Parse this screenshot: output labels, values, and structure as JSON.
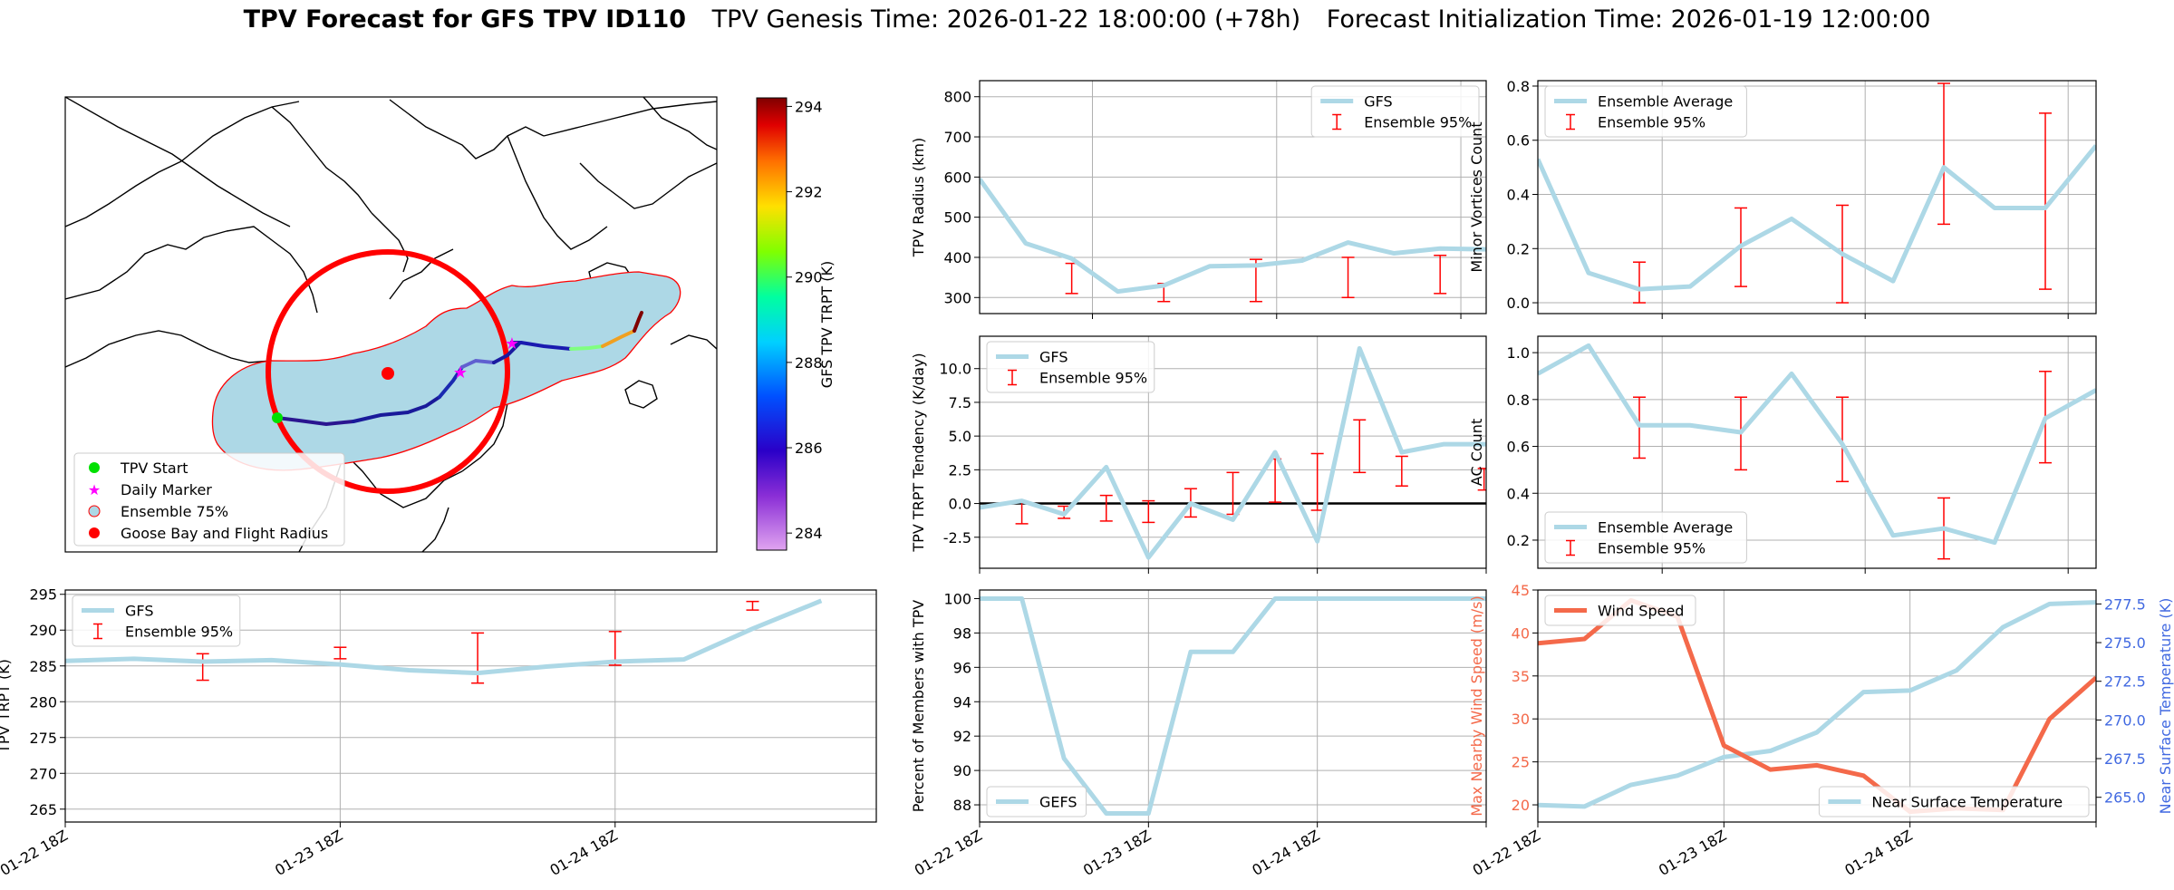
{
  "figure": {
    "title_main": "TPV Forecast for GFS TPV ID110",
    "title_genesis": "TPV Genesis Time: 2026-01-22 18:00:00 (+78h)",
    "title_init": "Forecast Initialization Time: 2026-01-19 12:00:00"
  },
  "colors": {
    "gfs_line": "#add8e6",
    "ensemble_err": "#ff0000",
    "wind": "#f4694a",
    "temp_axis": "#4169e1",
    "zero_line": "#000000"
  },
  "map": {
    "colorbar_label": "GFS TPV TRPT (K)",
    "colorbar_ticks": [
      284,
      286,
      288,
      290,
      292,
      294
    ],
    "colorbar_range": [
      283.6,
      294.2
    ],
    "legend": [
      {
        "label": "TPV Start",
        "marker": "circle",
        "color": "#00e000"
      },
      {
        "label": "Daily Marker",
        "marker": "star",
        "color": "#ff00ff"
      },
      {
        "label": "Ensemble 75%",
        "marker": "circle",
        "color": "#add8e6"
      },
      {
        "label": "Goose Bay and Flight Radius",
        "marker": "circle",
        "color": "#ff0000"
      }
    ]
  },
  "chart_data": [
    {
      "id": "radius",
      "type": "line",
      "ylabel": "TPV Radius (km)",
      "x": [
        0,
        1,
        2,
        3,
        4,
        5,
        6,
        7,
        8,
        9,
        10,
        11
      ],
      "ylim": [
        260,
        840
      ],
      "yticks": [
        300,
        400,
        500,
        600,
        700,
        800
      ],
      "series": [
        {
          "name": "GFS",
          "values": [
            595,
            435,
            397,
            315,
            330,
            378,
            380,
            392,
            437,
            410,
            422,
            420
          ]
        }
      ],
      "errorbars": {
        "name": "Ensemble 95%",
        "x": [
          2,
          4,
          6,
          8,
          10
        ],
        "low": [
          310,
          290,
          290,
          300,
          310
        ],
        "high": [
          385,
          335,
          395,
          400,
          405
        ]
      },
      "legend": "top-right"
    },
    {
      "id": "minor",
      "type": "line",
      "ylabel": "Minor Vortices Count",
      "x": [
        0,
        1,
        2,
        3,
        4,
        5,
        6,
        7,
        8,
        9,
        10,
        11
      ],
      "ylim": [
        -0.04,
        0.82
      ],
      "yticks": [
        0.0,
        0.2,
        0.4,
        0.6,
        0.8
      ],
      "series": [
        {
          "name": "Ensemble Average",
          "values": [
            0.53,
            0.11,
            0.05,
            0.06,
            0.21,
            0.31,
            0.18,
            0.08,
            0.5,
            0.35,
            0.35,
            0.58
          ]
        }
      ],
      "errorbars": {
        "name": "Ensemble 95%",
        "x": [
          2,
          4,
          6,
          8,
          10
        ],
        "low": [
          0.0,
          0.06,
          0.0,
          0.29,
          0.05
        ],
        "high": [
          0.15,
          0.35,
          0.36,
          0.81,
          0.7
        ]
      },
      "legend": "top-left"
    },
    {
      "id": "tendency",
      "type": "line",
      "ylabel": "TPV TRPT Tendency (K/day)",
      "x": [
        0,
        1,
        2,
        3,
        4,
        5,
        6,
        7,
        8,
        9,
        10,
        11,
        12
      ],
      "ylim": [
        -4.8,
        12.4
      ],
      "yticks": [
        -2.5,
        0.0,
        2.5,
        5.0,
        7.5,
        10.0
      ],
      "series": [
        {
          "name": "GFS",
          "values": [
            -0.3,
            0.2,
            -0.8,
            2.7,
            -4.0,
            0.0,
            -1.2,
            3.8,
            -2.8,
            11.5,
            3.8,
            4.4,
            4.4
          ]
        }
      ],
      "hline": 0,
      "errorbars": {
        "name": "Ensemble 95%",
        "x": [
          1,
          2,
          3,
          4,
          5,
          6,
          7,
          8,
          9,
          10,
          11.95
        ],
        "low": [
          -1.5,
          -1.1,
          -1.3,
          -1.4,
          -1.0,
          -0.8,
          0.1,
          -0.5,
          2.3,
          1.3,
          1.0
        ],
        "high": [
          0.1,
          -0.2,
          0.6,
          0.2,
          1.1,
          2.3,
          3.3,
          3.7,
          6.2,
          3.5,
          2.6
        ]
      },
      "legend": "top-left"
    },
    {
      "id": "ac",
      "type": "line",
      "ylabel": "AC Count",
      "x": [
        0,
        1,
        2,
        3,
        4,
        5,
        6,
        7,
        8,
        9,
        10,
        11
      ],
      "ylim": [
        0.08,
        1.07
      ],
      "yticks": [
        0.2,
        0.4,
        0.6,
        0.8,
        1.0
      ],
      "series": [
        {
          "name": "Ensemble Average",
          "values": [
            0.91,
            1.03,
            0.69,
            0.69,
            0.66,
            0.91,
            0.61,
            0.22,
            0.25,
            0.19,
            0.72,
            0.84
          ]
        }
      ],
      "errorbars": {
        "name": "Ensemble 95%",
        "x": [
          2,
          4,
          6,
          8,
          10
        ],
        "low": [
          0.55,
          0.5,
          0.45,
          0.12,
          0.53
        ],
        "high": [
          0.81,
          0.81,
          0.81,
          0.38,
          0.92
        ]
      },
      "legend": "bottom-left"
    },
    {
      "id": "trpt",
      "type": "line",
      "ylabel": "TPV TRPT (K)",
      "xticks": [
        {
          "pos": 0,
          "label": "01-22 18Z"
        },
        {
          "pos": 4,
          "label": "01-23 18Z"
        },
        {
          "pos": 8,
          "label": "01-24 18Z"
        }
      ],
      "x": [
        0,
        1,
        2,
        3,
        4,
        5,
        6,
        7,
        8,
        9,
        10,
        11
      ],
      "ylim": [
        263.2,
        295.6
      ],
      "yticks": [
        265,
        270,
        275,
        280,
        285,
        290,
        295
      ],
      "series": [
        {
          "name": "GFS",
          "values": [
            285.7,
            286.0,
            285.6,
            285.8,
            285.2,
            284.4,
            284.0,
            284.9,
            285.6,
            285.9,
            290.2,
            294.1
          ]
        }
      ],
      "errorbars": {
        "name": "Ensemble 95%",
        "x": [
          2,
          4,
          6,
          8,
          10
        ],
        "low": [
          283.0,
          286.0,
          282.6,
          285.1,
          292.8
        ],
        "high": [
          286.7,
          287.6,
          289.6,
          289.8,
          294.0
        ]
      },
      "legend": "top-left"
    },
    {
      "id": "percent",
      "type": "line",
      "ylabel": "Percent of Members with TPV",
      "xticks": [
        {
          "pos": 0,
          "label": "01-22 18Z"
        },
        {
          "pos": 4,
          "label": "01-23 18Z"
        },
        {
          "pos": 8,
          "label": "01-24 18Z"
        }
      ],
      "x": [
        0,
        1,
        2,
        3,
        4,
        5,
        6,
        7,
        8,
        9,
        10,
        11,
        12
      ],
      "ylim": [
        87.0,
        100.5
      ],
      "yticks": [
        88,
        90,
        92,
        94,
        96,
        98,
        100
      ],
      "series": [
        {
          "name": "GEFS",
          "values": [
            100,
            100,
            90.7,
            87.5,
            87.5,
            96.9,
            96.9,
            100,
            100,
            100,
            100,
            100,
            100
          ]
        }
      ],
      "legend": "bottom-left"
    },
    {
      "id": "wind",
      "type": "line",
      "ylabel": "Max Nearby Wind Speed (m/s)",
      "y2label": "Near Surface Temperature (K)",
      "xticks": [
        {
          "pos": 0,
          "label": "01-22 18Z"
        },
        {
          "pos": 4,
          "label": "01-23 18Z"
        },
        {
          "pos": 8,
          "label": "01-24 18Z"
        }
      ],
      "x": [
        0,
        1,
        2,
        3,
        4,
        5,
        6,
        7,
        8,
        9,
        10,
        11,
        12
      ],
      "ylim": [
        18.0,
        45.0
      ],
      "yticks": [
        20,
        25,
        30,
        35,
        40,
        45
      ],
      "y2lim": [
        263.4,
        278.4
      ],
      "y2ticks": [
        265.0,
        267.5,
        270.0,
        272.5,
        275.0,
        277.5
      ],
      "series": [
        {
          "name": "Wind Speed",
          "axis": "left",
          "values": [
            38.8,
            39.3,
            43.8,
            41.9,
            26.9,
            24.1,
            24.6,
            23.4,
            19.2,
            19.6,
            19.4,
            30.0,
            34.8
          ]
        }
      ],
      "series2": [
        {
          "name": "Near Surface Temperature",
          "axis": "right",
          "values": [
            264.5,
            264.4,
            265.8,
            266.4,
            267.6,
            268.0,
            269.2,
            271.8,
            271.9,
            273.2,
            276.0,
            277.5,
            277.6
          ]
        }
      ],
      "legend": "top-left / bottom-right"
    }
  ]
}
